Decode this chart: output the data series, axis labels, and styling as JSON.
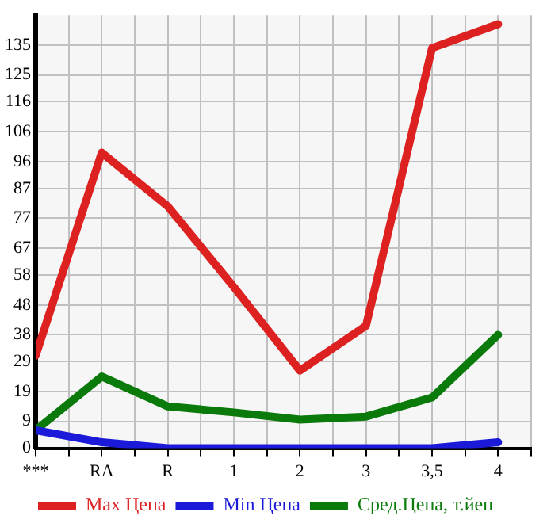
{
  "chart_data": {
    "type": "line",
    "categories": [
      "***",
      "RA",
      "R",
      "1",
      "2",
      "3",
      "3,5",
      "4"
    ],
    "series": [
      {
        "name": "Max Цена",
        "color": "#dd2020",
        "values": [
          31,
          99,
          81,
          54,
          26,
          41,
          134,
          142
        ]
      },
      {
        "name": "Min Цена",
        "color": "#1a1ad8",
        "values": [
          6,
          2,
          0,
          0,
          0,
          0,
          0,
          2
        ]
      },
      {
        "name": "Сред.Цена, т.йен",
        "color": "#0a7a0a",
        "values": [
          6,
          24,
          14,
          12,
          9.6,
          10.6,
          17,
          38
        ]
      }
    ],
    "ylim": [
      0,
      145
    ],
    "yticks": [
      0,
      9,
      19,
      29,
      38,
      48,
      58,
      67,
      77,
      87,
      96,
      106,
      116,
      125,
      135
    ],
    "grid": true,
    "legend": "bottom",
    "marker": "none",
    "line_style": "solid"
  }
}
